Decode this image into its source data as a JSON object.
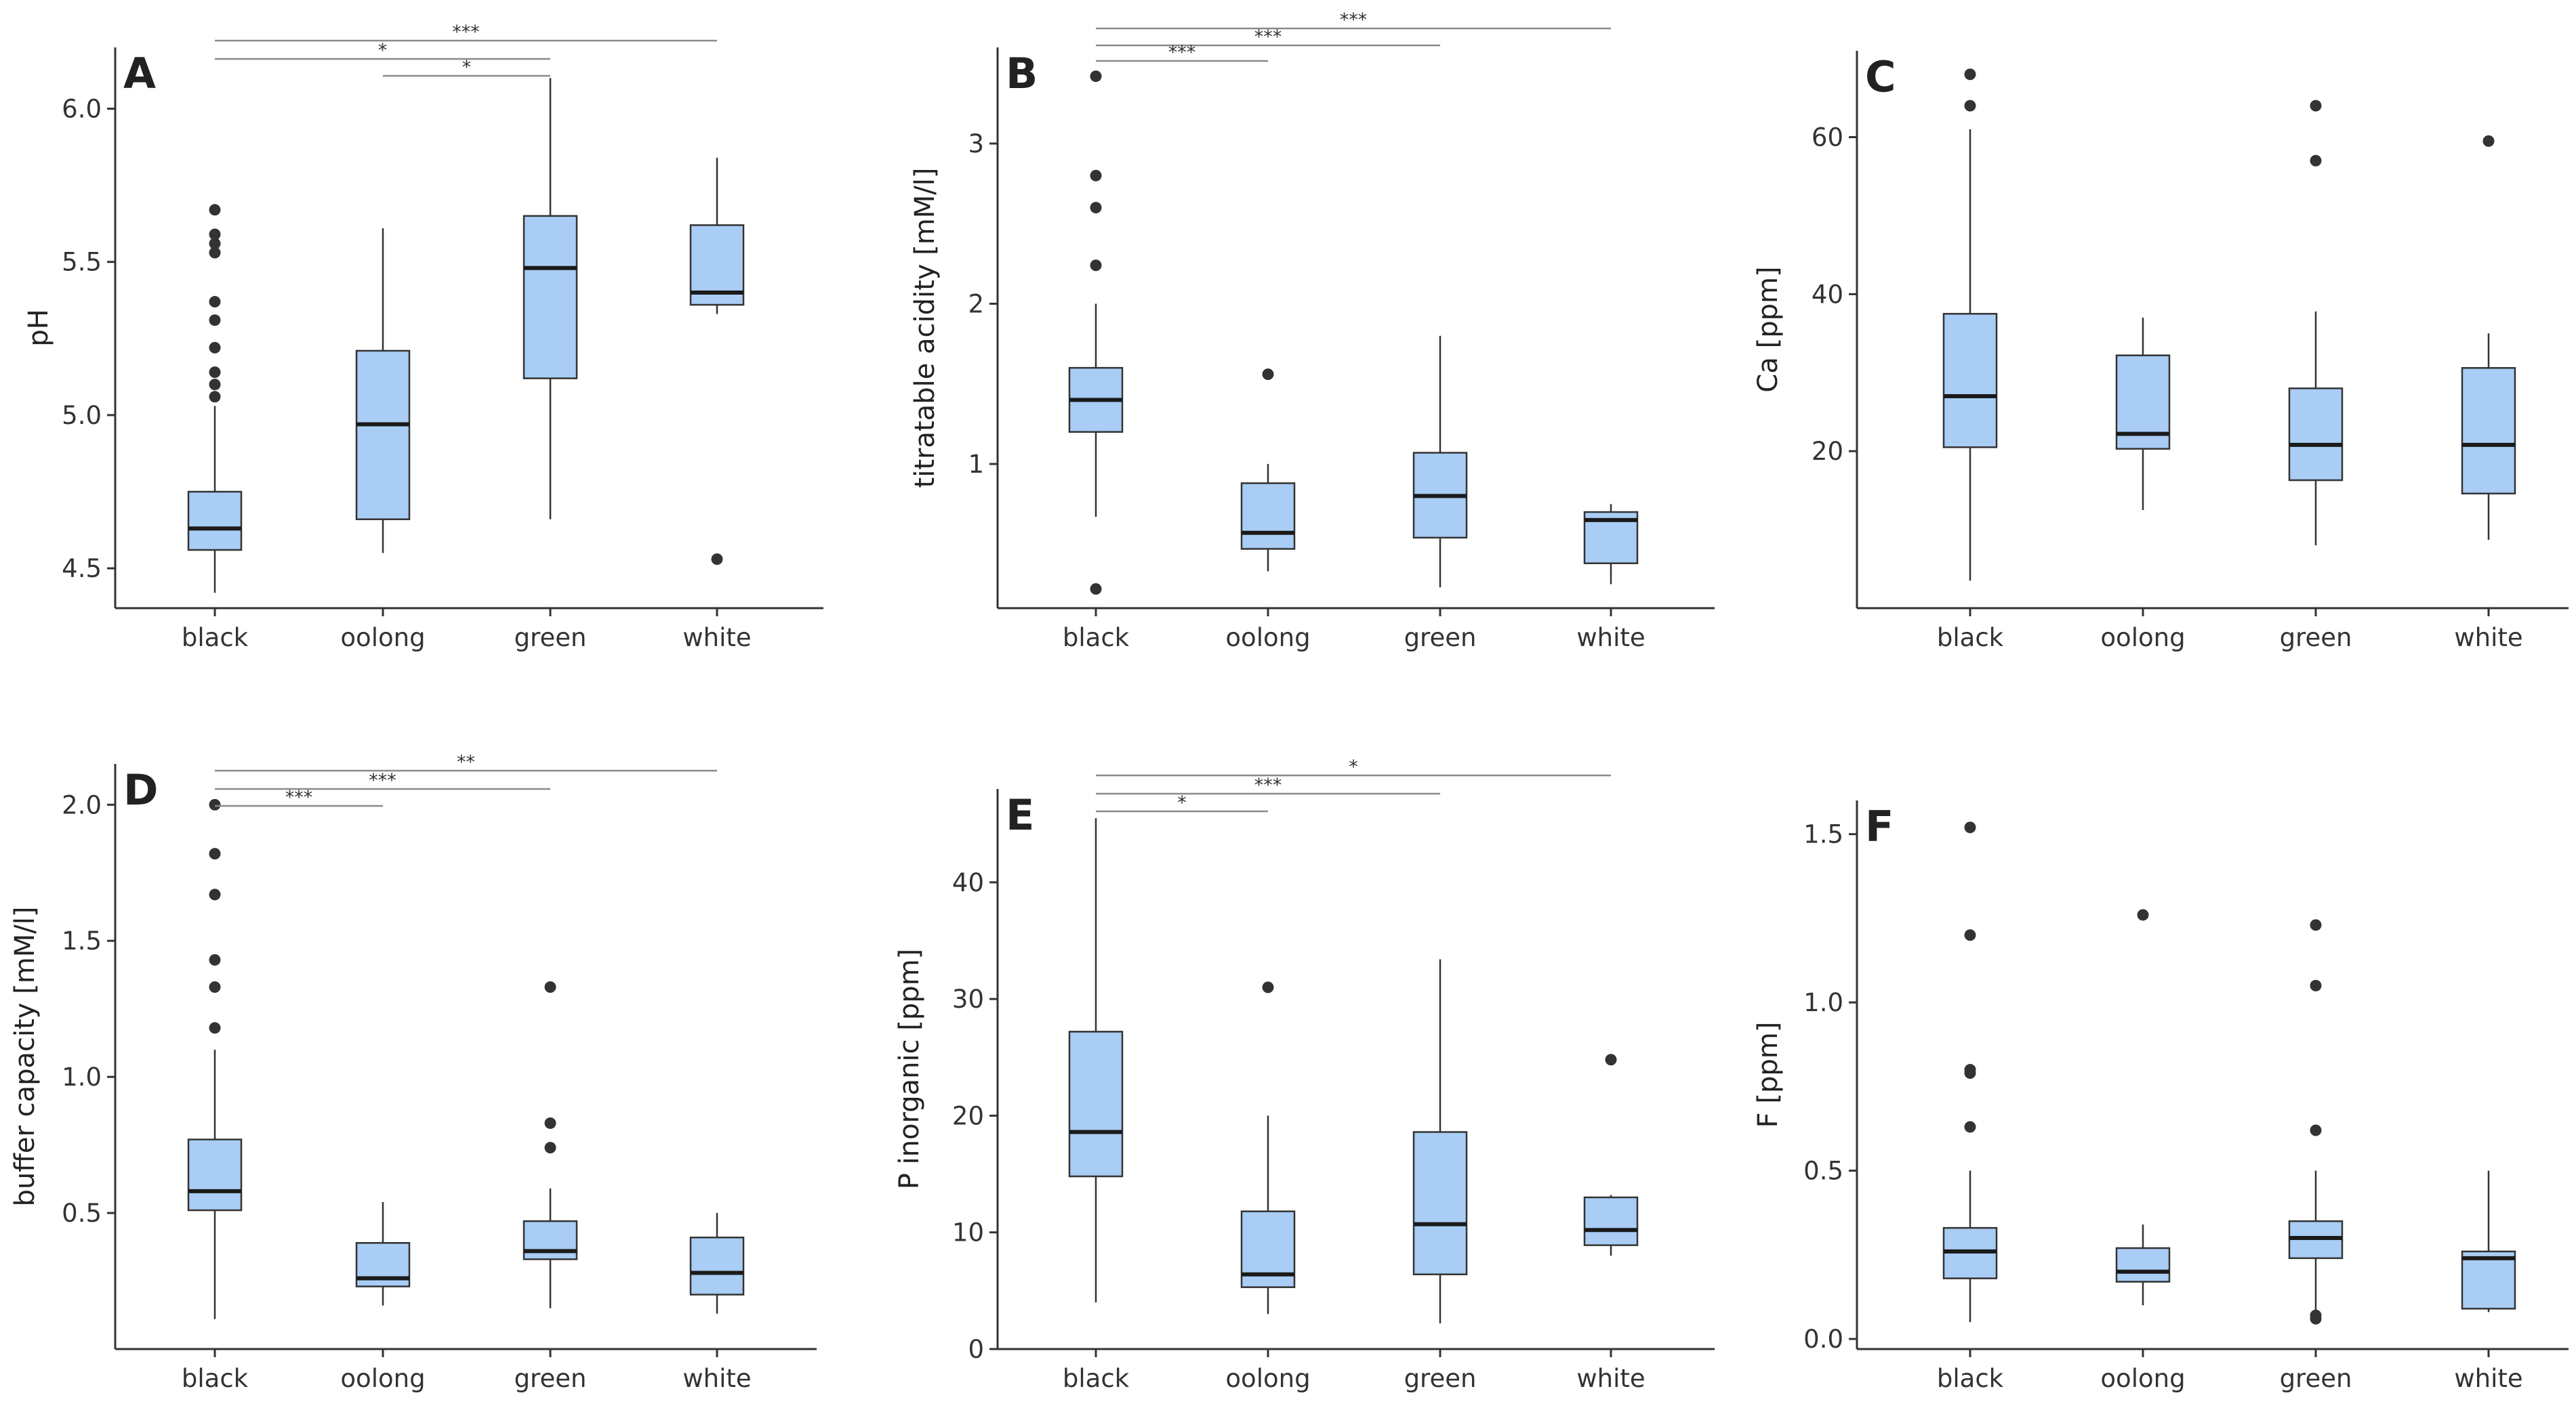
{
  "colors": {
    "box_fill": "#a9cdf4",
    "box_stroke": "#333333",
    "median": "#1a1a1a",
    "outlier": "#333333",
    "axis": "#333333",
    "sig_line": "#8a8a8a"
  },
  "chart_data": [
    {
      "type": "boxplot",
      "panel": "A",
      "ylabel": "pH",
      "ylim": [
        4.37,
        6.2
      ],
      "yticks": [
        4.5,
        5.0,
        5.5,
        6.0
      ],
      "ytick_labels": [
        "4.5",
        "5.0",
        "5.5",
        "6.0"
      ],
      "categories": [
        "black",
        "oolong",
        "green",
        "white"
      ],
      "boxes": [
        {
          "category": "black",
          "whisker_low": 4.42,
          "q1": 4.56,
          "median": 4.63,
          "q3": 4.75,
          "whisker_high": 5.03,
          "outliers": [
            5.06,
            5.1,
            5.14,
            5.22,
            5.31,
            5.37,
            5.53,
            5.56,
            5.59,
            5.67
          ]
        },
        {
          "category": "oolong",
          "whisker_low": 4.55,
          "q1": 4.66,
          "median": 4.97,
          "q3": 5.21,
          "whisker_high": 5.61,
          "outliers": []
        },
        {
          "category": "green",
          "whisker_low": 4.66,
          "q1": 5.12,
          "median": 5.48,
          "q3": 5.65,
          "whisker_high": 6.1,
          "outliers": []
        },
        {
          "category": "white",
          "whisker_low": 5.33,
          "q1": 5.36,
          "median": 5.4,
          "q3": 5.62,
          "whisker_high": 5.84,
          "outliers": [
            4.53
          ]
        }
      ],
      "significance": [
        {
          "from": "black",
          "to": "white",
          "label": "***"
        },
        {
          "from": "black",
          "to": "green",
          "label": "*"
        },
        {
          "from": "oolong",
          "to": "green",
          "label": "*"
        }
      ]
    },
    {
      "type": "boxplot",
      "panel": "B",
      "ylabel": "titratable acidity [mM/l]",
      "ylim": [
        0.1,
        3.6
      ],
      "yticks": [
        1,
        2,
        3
      ],
      "ytick_labels": [
        "1",
        "2",
        "3"
      ],
      "categories": [
        "black",
        "oolong",
        "green",
        "white"
      ],
      "boxes": [
        {
          "category": "black",
          "whisker_low": 0.67,
          "q1": 1.2,
          "median": 1.4,
          "q3": 1.6,
          "whisker_high": 2.0,
          "outliers": [
            0.22,
            2.24,
            2.6,
            2.8,
            3.42
          ]
        },
        {
          "category": "oolong",
          "whisker_low": 0.33,
          "q1": 0.47,
          "median": 0.57,
          "q3": 0.88,
          "whisker_high": 1.0,
          "outliers": [
            1.56
          ]
        },
        {
          "category": "green",
          "whisker_low": 0.23,
          "q1": 0.54,
          "median": 0.8,
          "q3": 1.07,
          "whisker_high": 1.8,
          "outliers": []
        },
        {
          "category": "white",
          "whisker_low": 0.25,
          "q1": 0.38,
          "median": 0.65,
          "q3": 0.7,
          "whisker_high": 0.75,
          "outliers": []
        }
      ],
      "significance": [
        {
          "from": "black",
          "to": "white",
          "label": "***"
        },
        {
          "from": "black",
          "to": "green",
          "label": "***"
        },
        {
          "from": "black",
          "to": "oolong",
          "label": "***"
        }
      ]
    },
    {
      "type": "boxplot",
      "panel": "C",
      "ylabel": "Ca [ppm]",
      "ylim": [
        0,
        71
      ],
      "yticks": [
        20,
        40,
        60
      ],
      "ytick_labels": [
        "20",
        "40",
        "60"
      ],
      "categories": [
        "black",
        "oolong",
        "green",
        "white"
      ],
      "boxes": [
        {
          "category": "black",
          "whisker_low": 3.5,
          "q1": 20.5,
          "median": 27,
          "q3": 37.5,
          "whisker_high": 61,
          "outliers": [
            64,
            68
          ]
        },
        {
          "category": "oolong",
          "whisker_low": 12.5,
          "q1": 20.3,
          "median": 22.2,
          "q3": 32.2,
          "whisker_high": 37,
          "outliers": []
        },
        {
          "category": "green",
          "whisker_low": 8,
          "q1": 16.3,
          "median": 20.8,
          "q3": 28,
          "whisker_high": 37.8,
          "outliers": [
            57,
            64
          ]
        },
        {
          "category": "white",
          "whisker_low": 8.7,
          "q1": 14.6,
          "median": 20.8,
          "q3": 30.6,
          "whisker_high": 35,
          "outliers": [
            59.5
          ]
        }
      ],
      "significance": []
    },
    {
      "type": "boxplot",
      "panel": "D",
      "ylabel": "buffer capacity [mM/l]",
      "ylim": [
        0.0,
        2.15
      ],
      "yticks": [
        0.5,
        1.0,
        1.5,
        2.0
      ],
      "ytick_labels": [
        "0.5",
        "1.0",
        "1.5",
        "2.0"
      ],
      "categories": [
        "black",
        "oolong",
        "green",
        "white"
      ],
      "boxes": [
        {
          "category": "black",
          "whisker_low": 0.11,
          "q1": 0.51,
          "median": 0.58,
          "q3": 0.77,
          "whisker_high": 1.1,
          "outliers": [
            1.18,
            1.33,
            1.43,
            1.67,
            1.82,
            2.0
          ]
        },
        {
          "category": "oolong",
          "whisker_low": 0.16,
          "q1": 0.23,
          "median": 0.26,
          "q3": 0.39,
          "whisker_high": 0.54,
          "outliers": []
        },
        {
          "category": "green",
          "whisker_low": 0.15,
          "q1": 0.33,
          "median": 0.36,
          "q3": 0.47,
          "whisker_high": 0.59,
          "outliers": [
            0.74,
            0.83,
            1.33
          ]
        },
        {
          "category": "white",
          "whisker_low": 0.13,
          "q1": 0.2,
          "median": 0.28,
          "q3": 0.41,
          "whisker_high": 0.5,
          "outliers": []
        }
      ],
      "significance": [
        {
          "from": "black",
          "to": "white",
          "label": "**"
        },
        {
          "from": "black",
          "to": "green",
          "label": "***"
        },
        {
          "from": "black",
          "to": "oolong",
          "label": "***"
        }
      ]
    },
    {
      "type": "boxplot",
      "panel": "E",
      "ylabel": "P inorganic [ppm]",
      "ylim": [
        0,
        48
      ],
      "yticks": [
        0,
        10,
        20,
        30,
        40
      ],
      "ytick_labels": [
        "0",
        "10",
        "20",
        "30",
        "40"
      ],
      "categories": [
        "black",
        "oolong",
        "green",
        "white"
      ],
      "boxes": [
        {
          "category": "black",
          "whisker_low": 4,
          "q1": 14.8,
          "median": 18.6,
          "q3": 27.2,
          "whisker_high": 45.5,
          "outliers": []
        },
        {
          "category": "oolong",
          "whisker_low": 3,
          "q1": 5.3,
          "median": 6.4,
          "q3": 11.8,
          "whisker_high": 20,
          "outliers": [
            31
          ]
        },
        {
          "category": "green",
          "whisker_low": 2.2,
          "q1": 6.4,
          "median": 10.7,
          "q3": 18.6,
          "whisker_high": 33.4,
          "outliers": []
        },
        {
          "category": "white",
          "whisker_low": 8,
          "q1": 8.9,
          "median": 10.2,
          "q3": 13,
          "whisker_high": 13.2,
          "outliers": [
            24.8
          ]
        }
      ],
      "significance": [
        {
          "from": "black",
          "to": "white",
          "label": "*"
        },
        {
          "from": "black",
          "to": "green",
          "label": "***"
        },
        {
          "from": "black",
          "to": "oolong",
          "label": "*"
        }
      ]
    },
    {
      "type": "boxplot",
      "panel": "F",
      "ylabel": "F [ppm]",
      "ylim": [
        -0.03,
        1.6
      ],
      "yticks": [
        0.0,
        0.5,
        1.0,
        1.5
      ],
      "ytick_labels": [
        "0.0",
        "0.5",
        "1.0",
        "1.5"
      ],
      "categories": [
        "black",
        "oolong",
        "green",
        "white"
      ],
      "boxes": [
        {
          "category": "black",
          "whisker_low": 0.05,
          "q1": 0.18,
          "median": 0.26,
          "q3": 0.33,
          "whisker_high": 0.5,
          "outliers": [
            0.63,
            0.79,
            0.8,
            1.2,
            1.52
          ]
        },
        {
          "category": "oolong",
          "whisker_low": 0.1,
          "q1": 0.17,
          "median": 0.2,
          "q3": 0.27,
          "whisker_high": 0.34,
          "outliers": [
            1.26
          ]
        },
        {
          "category": "green",
          "whisker_low": 0.07,
          "q1": 0.24,
          "median": 0.3,
          "q3": 0.35,
          "whisker_high": 0.5,
          "outliers": [
            0.06,
            0.07,
            0.62,
            1.05,
            1.23
          ]
        },
        {
          "category": "white",
          "whisker_low": 0.08,
          "q1": 0.09,
          "median": 0.24,
          "q3": 0.26,
          "whisker_high": 0.5,
          "outliers": []
        }
      ],
      "significance": []
    }
  ]
}
